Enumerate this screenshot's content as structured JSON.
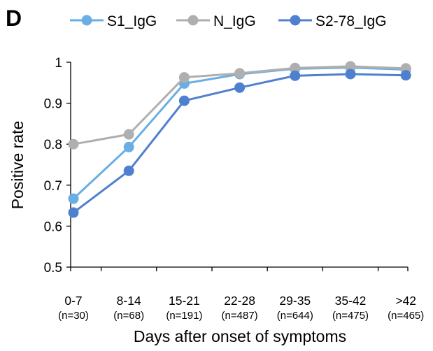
{
  "panel_label": "D",
  "chart_data": {
    "type": "line",
    "title": "",
    "xlabel": "Days after onset of symptoms",
    "ylabel": "Positive rate",
    "categories": [
      "0-7",
      "8-14",
      "15-21",
      "22-28",
      "29-35",
      "35-42",
      ">42"
    ],
    "category_counts": [
      "(n=30)",
      "(n=68)",
      "(n=191)",
      "(n=487)",
      "(n=644)",
      "(n=475)",
      "(n=465)"
    ],
    "ylim": [
      0.5,
      1.0
    ],
    "yticks": [
      0.5,
      0.6,
      0.7,
      0.8,
      0.9,
      1
    ],
    "ytick_labels": [
      "0.5",
      "0.6",
      "0.7",
      "0.8",
      "0.9",
      "1"
    ],
    "grid": false,
    "legend_position": "top",
    "series": [
      {
        "name": "S1_IgG",
        "color": "#6aaee3",
        "values": [
          0.667,
          0.793,
          0.948,
          0.971,
          0.984,
          0.987,
          0.982
        ]
      },
      {
        "name": "N_IgG",
        "color": "#afafaf",
        "values": [
          0.8,
          0.824,
          0.963,
          0.973,
          0.986,
          0.99,
          0.985
        ]
      },
      {
        "name": "S2-78_IgG",
        "color": "#4f80cf",
        "values": [
          0.633,
          0.735,
          0.906,
          0.938,
          0.967,
          0.971,
          0.968
        ]
      }
    ]
  }
}
